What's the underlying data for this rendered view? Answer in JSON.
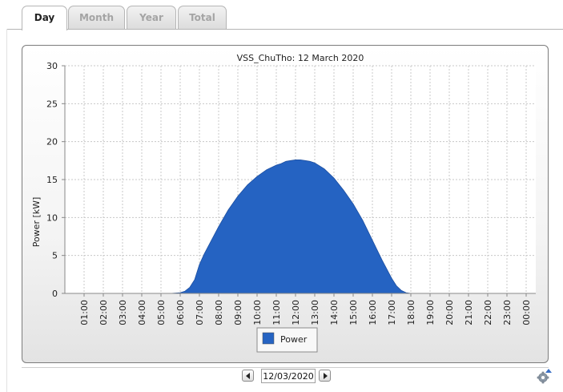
{
  "tabs": [
    {
      "label": "Day",
      "active": true
    },
    {
      "label": "Month",
      "active": false
    },
    {
      "label": "Year",
      "active": false
    },
    {
      "label": "Total",
      "active": false
    }
  ],
  "date_picker": {
    "value": "12/03/2020"
  },
  "icons": {
    "prev": "chevron-left-icon",
    "next": "chevron-right-icon",
    "settings": "gear-icon"
  },
  "colors": {
    "series": "#2563c2",
    "accent": "#2563c2"
  },
  "chart_data": {
    "type": "area",
    "title": "VSS_ChuTho: 12 March 2020",
    "xlabel": "",
    "ylabel": "Power [kW]",
    "ylim": [
      0,
      30
    ],
    "yticks": [
      0,
      5,
      10,
      15,
      20,
      25,
      30
    ],
    "xticks": [
      "01:00",
      "02:00",
      "03:00",
      "04:00",
      "05:00",
      "06:00",
      "07:00",
      "08:00",
      "09:00",
      "10:00",
      "11:00",
      "12:00",
      "13:00",
      "14:00",
      "15:00",
      "16:00",
      "17:00",
      "18:00",
      "19:00",
      "20:00",
      "21:00",
      "22:00",
      "23:00",
      "00:00"
    ],
    "grid": true,
    "legend_position": "bottom",
    "series": [
      {
        "name": "Power",
        "x_hours": [
          0.5,
          1,
          2,
          3,
          4,
          5,
          5.5,
          6,
          6.25,
          6.5,
          6.75,
          7,
          7.25,
          7.5,
          7.75,
          8,
          8.5,
          9,
          9.5,
          10,
          10.5,
          11,
          11.25,
          11.5,
          11.75,
          12,
          12.25,
          12.5,
          12.75,
          13,
          13.5,
          14,
          14.5,
          15,
          15.5,
          16,
          16.5,
          17,
          17.25,
          17.5,
          17.75,
          18,
          18.5,
          19,
          20,
          21,
          22,
          23,
          24
        ],
        "values": [
          0,
          0,
          0,
          0,
          0,
          0,
          0,
          0.1,
          0.3,
          0.8,
          1.8,
          3.8,
          5.2,
          6.4,
          7.6,
          8.8,
          11.0,
          12.8,
          14.3,
          15.4,
          16.3,
          16.9,
          17.1,
          17.4,
          17.5,
          17.6,
          17.6,
          17.5,
          17.4,
          17.2,
          16.4,
          15.2,
          13.6,
          11.8,
          9.6,
          7.0,
          4.4,
          2.0,
          1.0,
          0.4,
          0.1,
          0,
          0,
          0,
          0,
          0,
          0,
          0,
          0
        ]
      }
    ]
  }
}
